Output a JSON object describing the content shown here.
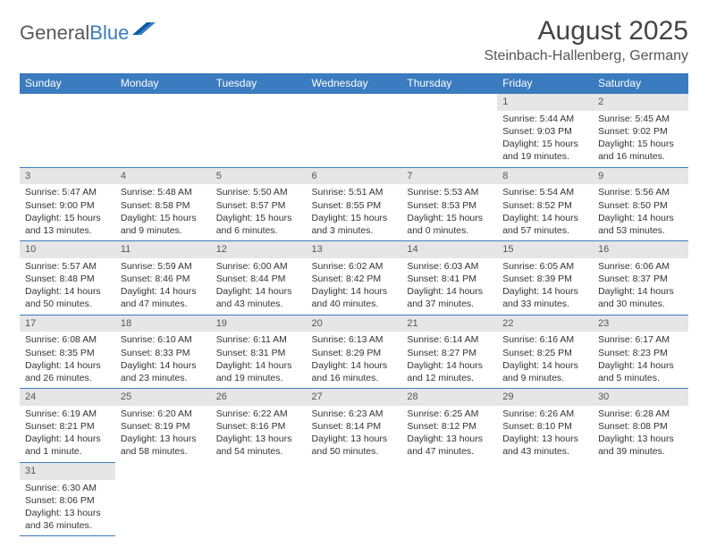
{
  "logo": {
    "text1": "General",
    "text2": "Blue"
  },
  "title": "August 2025",
  "location": "Steinbach-Hallenberg, Germany",
  "header_bg": "#3b7bbf",
  "days_of_week": [
    "Sunday",
    "Monday",
    "Tuesday",
    "Wednesday",
    "Thursday",
    "Friday",
    "Saturday"
  ],
  "weeks": [
    [
      null,
      null,
      null,
      null,
      null,
      {
        "n": "1",
        "sr": "5:44 AM",
        "ss": "9:03 PM",
        "dl": "15 hours and 19 minutes."
      },
      {
        "n": "2",
        "sr": "5:45 AM",
        "ss": "9:02 PM",
        "dl": "15 hours and 16 minutes."
      }
    ],
    [
      {
        "n": "3",
        "sr": "5:47 AM",
        "ss": "9:00 PM",
        "dl": "15 hours and 13 minutes."
      },
      {
        "n": "4",
        "sr": "5:48 AM",
        "ss": "8:58 PM",
        "dl": "15 hours and 9 minutes."
      },
      {
        "n": "5",
        "sr": "5:50 AM",
        "ss": "8:57 PM",
        "dl": "15 hours and 6 minutes."
      },
      {
        "n": "6",
        "sr": "5:51 AM",
        "ss": "8:55 PM",
        "dl": "15 hours and 3 minutes."
      },
      {
        "n": "7",
        "sr": "5:53 AM",
        "ss": "8:53 PM",
        "dl": "15 hours and 0 minutes."
      },
      {
        "n": "8",
        "sr": "5:54 AM",
        "ss": "8:52 PM",
        "dl": "14 hours and 57 minutes."
      },
      {
        "n": "9",
        "sr": "5:56 AM",
        "ss": "8:50 PM",
        "dl": "14 hours and 53 minutes."
      }
    ],
    [
      {
        "n": "10",
        "sr": "5:57 AM",
        "ss": "8:48 PM",
        "dl": "14 hours and 50 minutes."
      },
      {
        "n": "11",
        "sr": "5:59 AM",
        "ss": "8:46 PM",
        "dl": "14 hours and 47 minutes."
      },
      {
        "n": "12",
        "sr": "6:00 AM",
        "ss": "8:44 PM",
        "dl": "14 hours and 43 minutes."
      },
      {
        "n": "13",
        "sr": "6:02 AM",
        "ss": "8:42 PM",
        "dl": "14 hours and 40 minutes."
      },
      {
        "n": "14",
        "sr": "6:03 AM",
        "ss": "8:41 PM",
        "dl": "14 hours and 37 minutes."
      },
      {
        "n": "15",
        "sr": "6:05 AM",
        "ss": "8:39 PM",
        "dl": "14 hours and 33 minutes."
      },
      {
        "n": "16",
        "sr": "6:06 AM",
        "ss": "8:37 PM",
        "dl": "14 hours and 30 minutes."
      }
    ],
    [
      {
        "n": "17",
        "sr": "6:08 AM",
        "ss": "8:35 PM",
        "dl": "14 hours and 26 minutes."
      },
      {
        "n": "18",
        "sr": "6:10 AM",
        "ss": "8:33 PM",
        "dl": "14 hours and 23 minutes."
      },
      {
        "n": "19",
        "sr": "6:11 AM",
        "ss": "8:31 PM",
        "dl": "14 hours and 19 minutes."
      },
      {
        "n": "20",
        "sr": "6:13 AM",
        "ss": "8:29 PM",
        "dl": "14 hours and 16 minutes."
      },
      {
        "n": "21",
        "sr": "6:14 AM",
        "ss": "8:27 PM",
        "dl": "14 hours and 12 minutes."
      },
      {
        "n": "22",
        "sr": "6:16 AM",
        "ss": "8:25 PM",
        "dl": "14 hours and 9 minutes."
      },
      {
        "n": "23",
        "sr": "6:17 AM",
        "ss": "8:23 PM",
        "dl": "14 hours and 5 minutes."
      }
    ],
    [
      {
        "n": "24",
        "sr": "6:19 AM",
        "ss": "8:21 PM",
        "dl": "14 hours and 1 minute."
      },
      {
        "n": "25",
        "sr": "6:20 AM",
        "ss": "8:19 PM",
        "dl": "13 hours and 58 minutes."
      },
      {
        "n": "26",
        "sr": "6:22 AM",
        "ss": "8:16 PM",
        "dl": "13 hours and 54 minutes."
      },
      {
        "n": "27",
        "sr": "6:23 AM",
        "ss": "8:14 PM",
        "dl": "13 hours and 50 minutes."
      },
      {
        "n": "28",
        "sr": "6:25 AM",
        "ss": "8:12 PM",
        "dl": "13 hours and 47 minutes."
      },
      {
        "n": "29",
        "sr": "6:26 AM",
        "ss": "8:10 PM",
        "dl": "13 hours and 43 minutes."
      },
      {
        "n": "30",
        "sr": "6:28 AM",
        "ss": "8:08 PM",
        "dl": "13 hours and 39 minutes."
      }
    ],
    [
      {
        "n": "31",
        "sr": "6:30 AM",
        "ss": "8:06 PM",
        "dl": "13 hours and 36 minutes."
      },
      null,
      null,
      null,
      null,
      null,
      null
    ]
  ],
  "labels": {
    "sunrise": "Sunrise:",
    "sunset": "Sunset:",
    "daylight": "Daylight:"
  }
}
